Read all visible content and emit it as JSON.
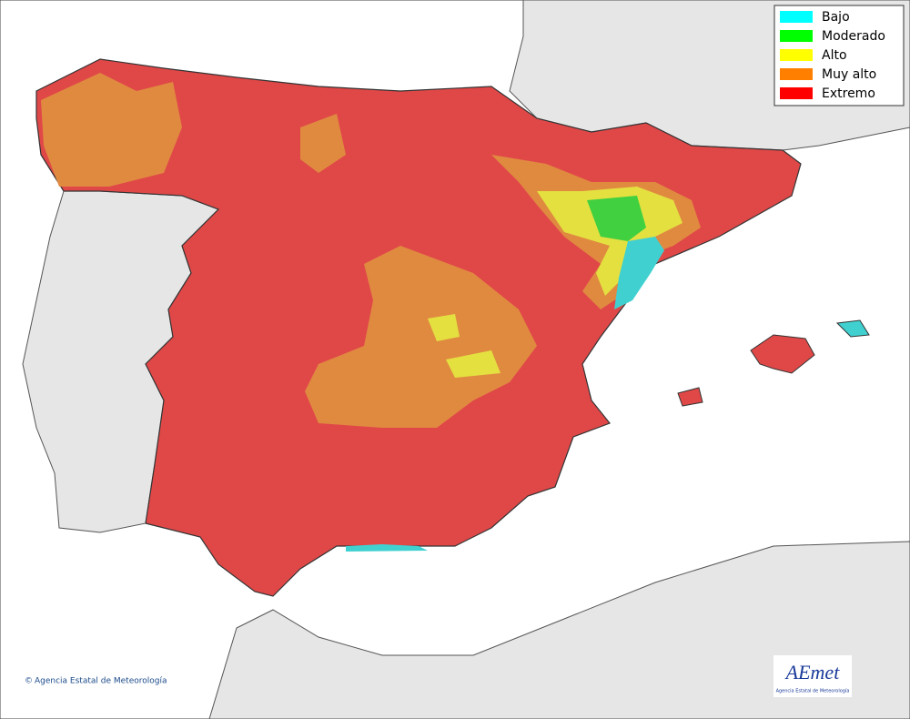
{
  "legend": {
    "items": [
      {
        "label": "Bajo",
        "color": "#00ffff"
      },
      {
        "label": "Moderado",
        "color": "#00ff00"
      },
      {
        "label": "Alto",
        "color": "#ffff00"
      },
      {
        "label": "Muy alto",
        "color": "#ff8000"
      },
      {
        "label": "Extremo",
        "color": "#ff0000"
      }
    ]
  },
  "footer": {
    "symbol": "©",
    "text": "Agencia Estatal de Meteorología"
  },
  "logo": {
    "name": "AEmet",
    "subtitle": "Agencia Estatal de Meteorología"
  }
}
